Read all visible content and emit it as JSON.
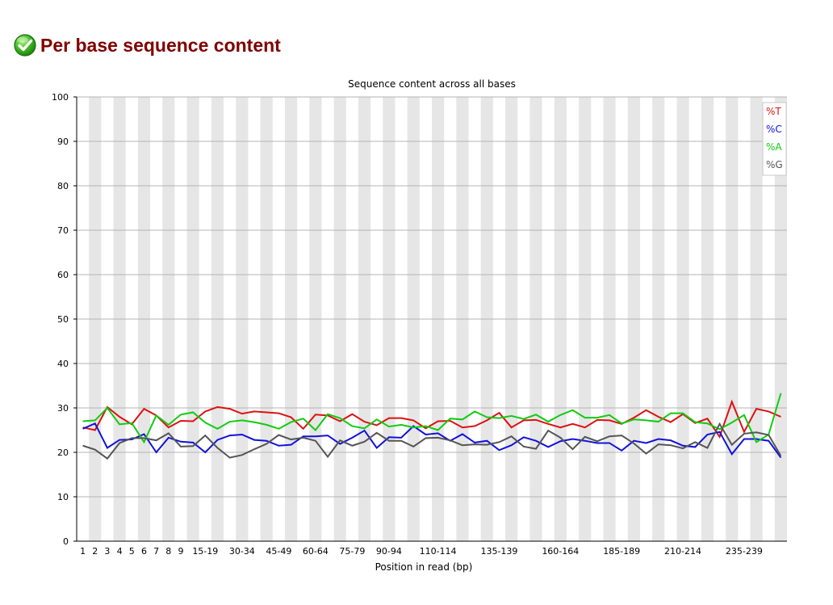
{
  "section": {
    "title": "Per base sequence content",
    "status_icon": "check-circle-icon",
    "status_color": "#22aa22"
  },
  "chart_data": {
    "type": "line",
    "title": "Sequence content across all bases",
    "xlabel": "Position in read (bp)",
    "ylabel": "",
    "ylim": [
      0,
      100
    ],
    "yticks": [
      0,
      10,
      20,
      30,
      40,
      50,
      60,
      70,
      80,
      90,
      100
    ],
    "grid": true,
    "legend_position": "top-right",
    "categories": [
      "1",
      "2",
      "3",
      "4",
      "5",
      "6",
      "7",
      "8",
      "9",
      "10-14",
      "15-19",
      "20-24",
      "25-29",
      "30-34",
      "35-39",
      "40-44",
      "45-49",
      "50-54",
      "55-59",
      "60-64",
      "65-69",
      "70-74",
      "75-79",
      "80-84",
      "85-89",
      "90-94",
      "95-99",
      "100-104",
      "105-109",
      "110-114",
      "115-119",
      "120-124",
      "125-129",
      "130-134",
      "135-139",
      "140-144",
      "145-149",
      "150-154",
      "155-159",
      "160-164",
      "165-169",
      "170-174",
      "175-179",
      "180-184",
      "185-189",
      "190-194",
      "195-199",
      "200-204",
      "205-209",
      "210-214",
      "215-219",
      "220-224",
      "225-229",
      "230-234",
      "235-239",
      "240-244",
      "245-249",
      "250-251"
    ],
    "visible_tick_labels": [
      "1",
      "2",
      "3",
      "4",
      "5",
      "6",
      "7",
      "8",
      "9",
      "15-19",
      "30-34",
      "45-49",
      "60-64",
      "75-79",
      "90-94",
      "110-114",
      "135-139",
      "160-164",
      "185-189",
      "210-214",
      "235-239"
    ],
    "series": [
      {
        "name": "%T",
        "color": "#dd1111",
        "values": [
          25.6,
          25.0,
          30.2,
          28.0,
          26.3,
          29.8,
          28.3,
          25.6,
          27.1,
          27.0,
          29.2,
          30.2,
          29.8,
          28.7,
          29.2,
          29.0,
          28.8,
          27.9,
          25.3,
          28.5,
          28.3,
          27.0,
          28.6,
          26.9,
          26.1,
          27.7,
          27.7,
          27.2,
          25.4,
          27.0,
          27.1,
          25.6,
          25.9,
          27.2,
          28.9,
          25.6,
          27.2,
          27.3,
          26.4,
          25.6,
          26.4,
          25.6,
          27.3,
          27.2,
          26.4,
          27.8,
          29.5,
          28.0,
          26.8,
          28.6,
          26.6,
          27.6,
          23.5,
          31.4,
          24.6,
          29.8,
          29.2,
          28.0
        ]
      },
      {
        "name": "%C",
        "color": "#1111dd",
        "values": [
          25.3,
          26.5,
          21.0,
          22.8,
          22.9,
          24.1,
          20.0,
          23.3,
          22.4,
          22.2,
          20.0,
          22.8,
          23.8,
          24.0,
          22.8,
          22.6,
          21.5,
          21.7,
          23.6,
          23.6,
          23.8,
          21.9,
          23.3,
          24.9,
          21.0,
          23.4,
          23.3,
          25.9,
          24.0,
          24.3,
          22.6,
          24.1,
          22.2,
          22.6,
          20.5,
          21.6,
          23.4,
          22.6,
          21.2,
          22.5,
          23.0,
          22.6,
          22.1,
          22.1,
          20.4,
          22.6,
          22.1,
          23.0,
          22.7,
          21.5,
          21.2,
          24.0,
          24.6,
          19.6,
          23.0,
          23.0,
          22.6,
          18.8
        ]
      },
      {
        "name": "%A",
        "color": "#11cc11",
        "values": [
          27.0,
          27.2,
          30.0,
          26.3,
          26.6,
          22.3,
          28.3,
          26.2,
          28.5,
          29.0,
          26.7,
          25.3,
          26.9,
          27.2,
          26.8,
          26.2,
          25.3,
          26.8,
          27.6,
          25.0,
          28.6,
          27.7,
          25.9,
          25.4,
          27.4,
          25.8,
          26.2,
          25.6,
          25.9,
          25.0,
          27.6,
          27.4,
          29.2,
          27.9,
          27.7,
          28.2,
          27.5,
          28.5,
          26.9,
          28.4,
          29.5,
          27.8,
          27.8,
          28.4,
          26.5,
          27.4,
          27.2,
          26.9,
          28.8,
          28.8,
          26.8,
          26.5,
          25.2,
          26.7,
          28.4,
          22.3,
          24.0,
          33.3
        ]
      },
      {
        "name": "%G",
        "color": "#555555",
        "values": [
          21.5,
          20.6,
          18.6,
          22.1,
          23.2,
          23.2,
          22.7,
          24.3,
          21.3,
          21.4,
          23.8,
          21.0,
          18.8,
          19.4,
          20.7,
          21.9,
          23.9,
          22.9,
          23.3,
          22.6,
          19.0,
          22.7,
          21.5,
          22.4,
          24.4,
          22.6,
          22.6,
          21.3,
          23.2,
          23.3,
          22.7,
          21.6,
          21.8,
          21.7,
          22.3,
          23.6,
          21.3,
          20.8,
          24.9,
          23.3,
          20.7,
          23.5,
          22.5,
          23.6,
          23.8,
          22.0,
          19.7,
          21.8,
          21.6,
          20.9,
          22.3,
          21.0,
          26.4,
          21.7,
          24.2,
          24.5,
          23.9,
          19.2
        ]
      }
    ]
  }
}
